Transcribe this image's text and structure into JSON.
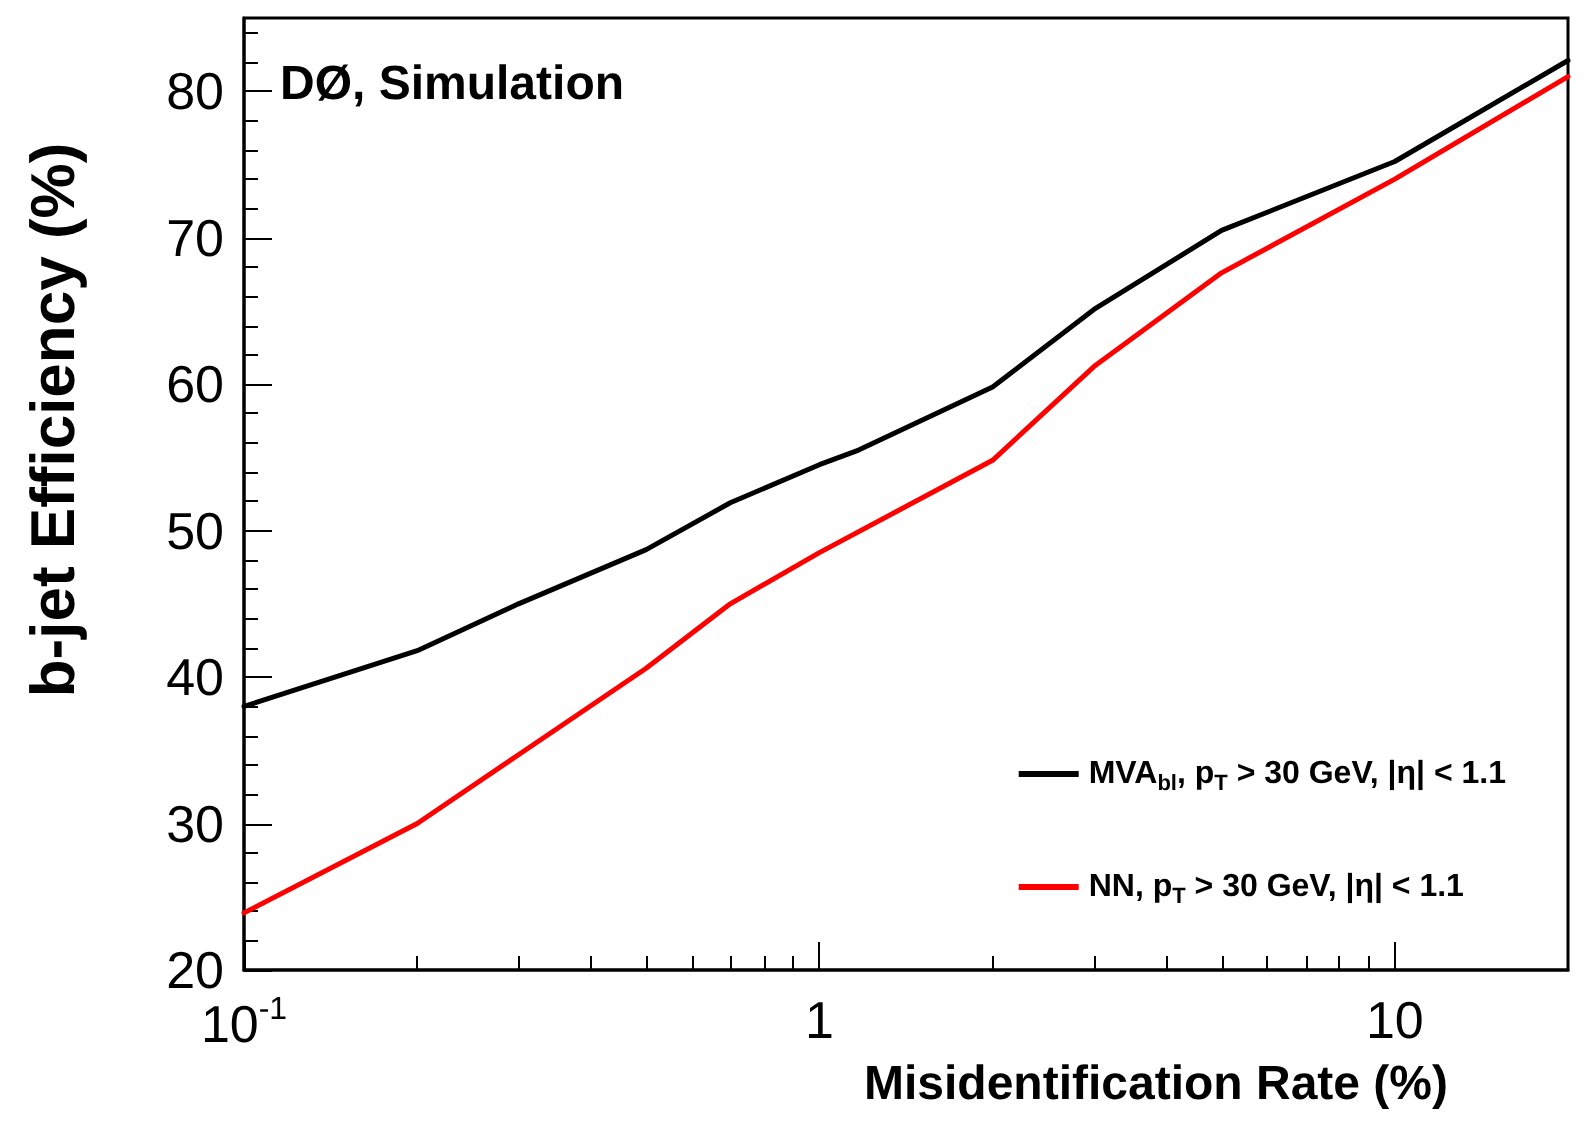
{
  "chart_data": {
    "type": "line",
    "xlabel": "Misidentification Rate (%)",
    "ylabel": "b-jet Efficiency (%)",
    "annotations": [
      "DØ, Simulation"
    ],
    "log": "x",
    "xlim": [
      0.1,
      20
    ],
    "xticks": [
      {
        "value": 0.1,
        "label": "10$^{-1}$"
      },
      1,
      10
    ],
    "ylim": [
      20,
      85
    ],
    "yticks": [
      20,
      30,
      40,
      50,
      60,
      70,
      80
    ],
    "grid": false,
    "legend": "bottom right",
    "marker": "none",
    "line_style": "solid",
    "series": [
      {
        "name": "MVA$_{bl}$, p$_{T}$ > 30 GeV, |η| < 1.1",
        "color": "#000000",
        "x": [
          0.1,
          0.2,
          0.3,
          0.5,
          0.7,
          1,
          1.17,
          2,
          3,
          5,
          10,
          20
        ],
        "values": [
          38.0,
          41.8,
          45.0,
          48.7,
          51.9,
          54.5,
          55.5,
          59.8,
          65.1,
          70.5,
          75.2,
          82.1
        ]
      },
      {
        "name": "NN, p$_{T}$ > 30 GeV, |η| < 1.1",
        "color": "#ff0000",
        "x": [
          0.1,
          0.2,
          0.3,
          0.5,
          0.7,
          1,
          2,
          3,
          5,
          10,
          20
        ],
        "values": [
          23.9,
          30.0,
          34.7,
          40.6,
          45.0,
          48.5,
          54.8,
          61.2,
          67.6,
          74.0,
          81.0
        ]
      }
    ]
  }
}
